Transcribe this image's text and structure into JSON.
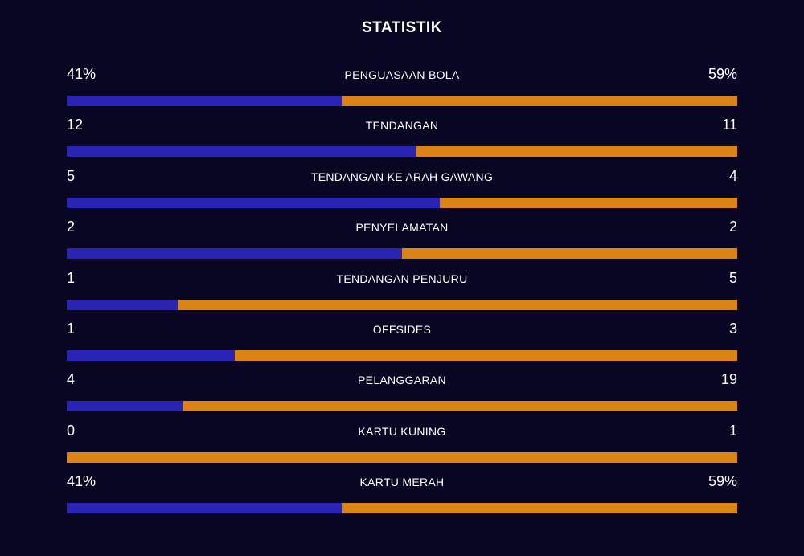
{
  "title": "STATISTIK",
  "colors": {
    "background": "#080622",
    "home": "#2a24b6",
    "away": "#db8415"
  },
  "stats": [
    {
      "label": "PENGUASAAN BOLA",
      "home": "41%",
      "away": "59%",
      "home_share": 0.41
    },
    {
      "label": "TENDANGAN",
      "home": "12",
      "away": "11",
      "home_share": 0.522
    },
    {
      "label": "TENDANGAN KE ARAH GAWANG",
      "home": "5",
      "away": "4",
      "home_share": 0.556
    },
    {
      "label": "PENYELAMATAN",
      "home": "2",
      "away": "2",
      "home_share": 0.5
    },
    {
      "label": "TENDANGAN PENJURU",
      "home": "1",
      "away": "5",
      "home_share": 0.167
    },
    {
      "label": "OFFSIDES",
      "home": "1",
      "away": "3",
      "home_share": 0.25
    },
    {
      "label": "PELANGGARAN",
      "home": "4",
      "away": "19",
      "home_share": 0.174
    },
    {
      "label": "KARTU KUNING",
      "home": "0",
      "away": "1",
      "home_share": 0.0
    },
    {
      "label": "KARTU MERAH",
      "home": "41%",
      "away": "59%",
      "home_share": 0.41
    }
  ]
}
